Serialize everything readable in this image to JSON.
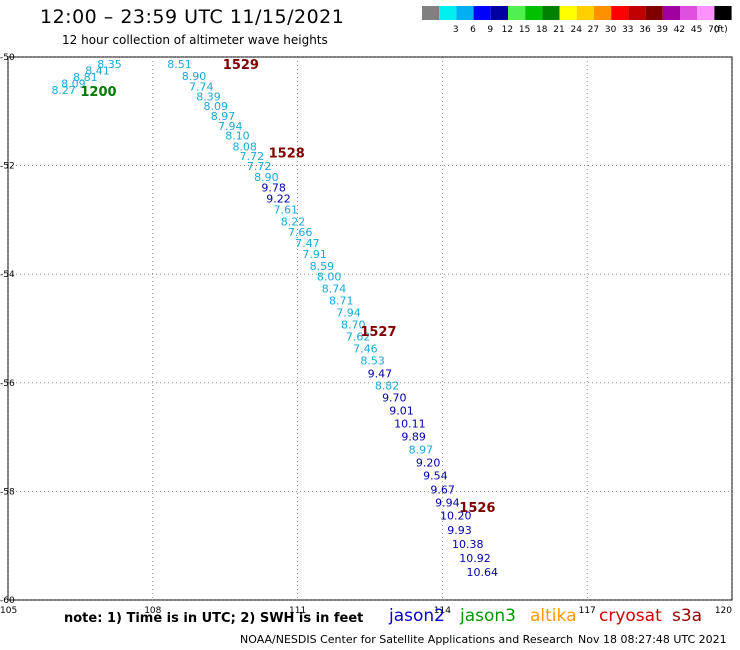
{
  "header": {
    "title": "12:00 – 23:59 UTC 11/15/2021",
    "subtitle": "12 hour collection of altimeter wave heights"
  },
  "colorbar": {
    "unit": "(ft)",
    "bins": [
      {
        "label": "",
        "color": "#808080"
      },
      {
        "label": "3",
        "color": "#00f0f0"
      },
      {
        "label": "6",
        "color": "#00b0f0"
      },
      {
        "label": "9",
        "color": "#0000ff"
      },
      {
        "label": "12",
        "color": "#0000a0"
      },
      {
        "label": "15",
        "color": "#50f050"
      },
      {
        "label": "18",
        "color": "#00c000"
      },
      {
        "label": "21",
        "color": "#008000"
      },
      {
        "label": "24",
        "color": "#ffff00"
      },
      {
        "label": "27",
        "color": "#ffd000"
      },
      {
        "label": "30",
        "color": "#ff9000"
      },
      {
        "label": "33",
        "color": "#ff0000"
      },
      {
        "label": "36",
        "color": "#c00000"
      },
      {
        "label": "39",
        "color": "#800000"
      },
      {
        "label": "42",
        "color": "#a000a0"
      },
      {
        "label": "45",
        "color": "#e050e0"
      },
      {
        "label": "70",
        "color": "#ff90ff"
      },
      {
        "label": "",
        "color": "#000000"
      }
    ]
  },
  "chart_data": {
    "type": "scatter",
    "x_ticks": [
      "105",
      "108",
      "111",
      "114",
      "117",
      "120"
    ],
    "y_ticks": [
      "-50",
      "-52",
      "-54",
      "-56",
      "-58",
      "-60"
    ],
    "xlim": [
      105,
      120
    ],
    "ylim": [
      -60,
      -50
    ],
    "grid": true,
    "colors": {
      "light": "#1aa8d8",
      "dark": "#0000aa",
      "time_red": "#800000",
      "time_green": "#007a00"
    },
    "points": [
      {
        "lon": 105.9,
        "lat": -50.68,
        "value": "8.27",
        "c": "light"
      },
      {
        "lon": 106.1,
        "lat": -50.56,
        "value": "8.09",
        "c": "light"
      },
      {
        "lon": 106.35,
        "lat": -50.44,
        "value": "8.81",
        "c": "light"
      },
      {
        "lon": 106.6,
        "lat": -50.32,
        "value": "8.41",
        "c": "light"
      },
      {
        "lon": 106.85,
        "lat": -50.2,
        "value": "8.35",
        "c": "light"
      },
      {
        "lon": 108.3,
        "lat": -50.2,
        "value": "8.51",
        "c": "light"
      },
      {
        "lon": 108.6,
        "lat": -50.42,
        "value": "8.90",
        "c": "light"
      },
      {
        "lon": 108.75,
        "lat": -50.62,
        "value": "7.74",
        "c": "light"
      },
      {
        "lon": 108.9,
        "lat": -50.8,
        "value": "8.39",
        "c": "light"
      },
      {
        "lon": 109.05,
        "lat": -50.98,
        "value": "8.09",
        "c": "light"
      },
      {
        "lon": 109.2,
        "lat": -51.16,
        "value": "8.97",
        "c": "light"
      },
      {
        "lon": 109.35,
        "lat": -51.34,
        "value": "7.94",
        "c": "light"
      },
      {
        "lon": 109.5,
        "lat": -51.52,
        "value": "8.10",
        "c": "light"
      },
      {
        "lon": 109.65,
        "lat": -51.72,
        "value": "8.08",
        "c": "light"
      },
      {
        "lon": 109.8,
        "lat": -51.9,
        "value": "7.72",
        "c": "light"
      },
      {
        "lon": 109.95,
        "lat": -52.08,
        "value": "7.72",
        "c": "light"
      },
      {
        "lon": 110.1,
        "lat": -52.28,
        "value": "8.90",
        "c": "light"
      },
      {
        "lon": 110.25,
        "lat": -52.48,
        "value": "9.78",
        "c": "dark"
      },
      {
        "lon": 110.35,
        "lat": -52.68,
        "value": "9.22",
        "c": "dark"
      },
      {
        "lon": 110.5,
        "lat": -52.88,
        "value": "7.61",
        "c": "light"
      },
      {
        "lon": 110.65,
        "lat": -53.1,
        "value": "8.22",
        "c": "light"
      },
      {
        "lon": 110.8,
        "lat": -53.3,
        "value": "7.66",
        "c": "light"
      },
      {
        "lon": 110.95,
        "lat": -53.5,
        "value": "7.47",
        "c": "light"
      },
      {
        "lon": 111.1,
        "lat": -53.7,
        "value": "7.91",
        "c": "light"
      },
      {
        "lon": 111.25,
        "lat": -53.92,
        "value": "8.59",
        "c": "light"
      },
      {
        "lon": 111.4,
        "lat": -54.12,
        "value": "8.00",
        "c": "light"
      },
      {
        "lon": 111.5,
        "lat": -54.34,
        "value": "8.74",
        "c": "light"
      },
      {
        "lon": 111.65,
        "lat": -54.56,
        "value": "8.71",
        "c": "light"
      },
      {
        "lon": 111.8,
        "lat": -54.78,
        "value": "7.94",
        "c": "light"
      },
      {
        "lon": 111.9,
        "lat": -55.0,
        "value": "8.70",
        "c": "light"
      },
      {
        "lon": 112.0,
        "lat": -55.22,
        "value": "7.62",
        "c": "light"
      },
      {
        "lon": 112.15,
        "lat": -55.44,
        "value": "7.46",
        "c": "light"
      },
      {
        "lon": 112.3,
        "lat": -55.66,
        "value": "8.53",
        "c": "light"
      },
      {
        "lon": 112.45,
        "lat": -55.9,
        "value": "9.47",
        "c": "dark"
      },
      {
        "lon": 112.6,
        "lat": -56.12,
        "value": "8.82",
        "c": "light"
      },
      {
        "lon": 112.75,
        "lat": -56.34,
        "value": "9.70",
        "c": "dark"
      },
      {
        "lon": 112.9,
        "lat": -56.58,
        "value": "9.01",
        "c": "dark"
      },
      {
        "lon": 113.0,
        "lat": -56.82,
        "value": "10.11",
        "c": "dark"
      },
      {
        "lon": 113.15,
        "lat": -57.06,
        "value": "9.89",
        "c": "dark"
      },
      {
        "lon": 113.3,
        "lat": -57.3,
        "value": "8.97",
        "c": "light"
      },
      {
        "lon": 113.45,
        "lat": -57.54,
        "value": "9.20",
        "c": "dark"
      },
      {
        "lon": 113.6,
        "lat": -57.78,
        "value": "9.54",
        "c": "dark"
      },
      {
        "lon": 113.75,
        "lat": -58.04,
        "value": "9.67",
        "c": "dark"
      },
      {
        "lon": 113.85,
        "lat": -58.28,
        "value": "9.94",
        "c": "dark"
      },
      {
        "lon": 113.95,
        "lat": -58.52,
        "value": "10.20",
        "c": "dark"
      },
      {
        "lon": 114.1,
        "lat": -58.78,
        "value": "9.93",
        "c": "dark"
      },
      {
        "lon": 114.2,
        "lat": -59.04,
        "value": "10.38",
        "c": "dark"
      },
      {
        "lon": 114.35,
        "lat": -59.3,
        "value": "10.92",
        "c": "dark"
      },
      {
        "lon": 114.5,
        "lat": -59.56,
        "value": "10.64",
        "c": "dark"
      }
    ],
    "time_labels": [
      {
        "lon": 106.5,
        "lat": -50.72,
        "text": "1200",
        "c": "time_green"
      },
      {
        "lon": 109.45,
        "lat": -50.22,
        "text": "1529",
        "c": "time_red"
      },
      {
        "lon": 110.4,
        "lat": -51.85,
        "text": "1528",
        "c": "time_red"
      },
      {
        "lon": 112.3,
        "lat": -55.14,
        "text": "1527",
        "c": "time_red"
      },
      {
        "lon": 114.35,
        "lat": -58.38,
        "text": "1526",
        "c": "time_red"
      }
    ]
  },
  "legend": {
    "note": "note:  1) Time is in UTC;  2) SWH is in feet",
    "satellites": [
      {
        "name": "jason2",
        "color": "#0000cc"
      },
      {
        "name": "jason3",
        "color": "#009900"
      },
      {
        "name": "altika",
        "color": "#ff9900"
      },
      {
        "name": "cryosat",
        "color": "#cc0000"
      },
      {
        "name": "s3a",
        "color": "#990000"
      }
    ]
  },
  "footer": {
    "credit": "NOAA/NESDIS Center for Satellite Applications and Research",
    "timestamp": "Nov 18 08:27:48 UTC 2021"
  }
}
